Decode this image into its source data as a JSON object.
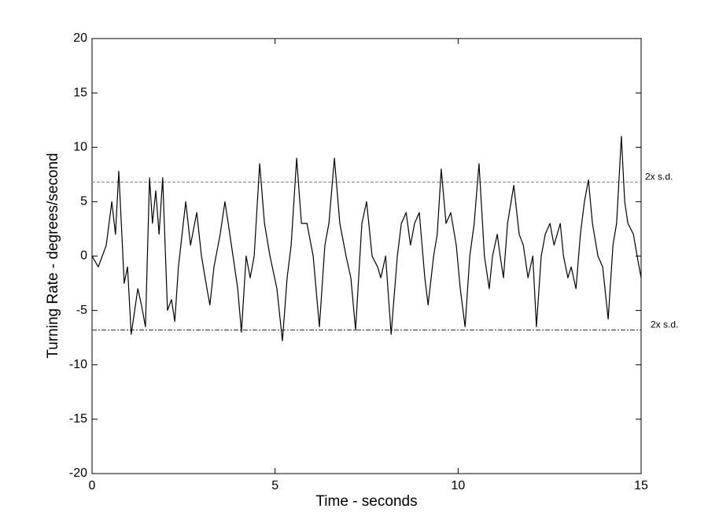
{
  "chart_data": {
    "type": "line",
    "x_label": "Time - seconds",
    "y_label": "Turning Rate - degrees/second",
    "x": [
      0,
      0.17,
      0.39,
      0.54,
      0.64,
      0.73,
      0.88,
      0.97,
      1.07,
      1.25,
      1.35,
      1.46,
      1.57,
      1.65,
      1.74,
      1.83,
      1.93,
      2.06,
      2.17,
      2.26,
      2.36,
      2.56,
      2.69,
      2.86,
      2.99,
      3.14,
      3.22,
      3.33,
      3.5,
      3.63,
      3.72,
      3.85,
      3.98,
      4.08,
      4.21,
      4.32,
      4.43,
      4.58,
      4.71,
      4.86,
      5.05,
      5.2,
      5.33,
      5.44,
      5.59,
      5.72,
      5.87,
      6.04,
      6.21,
      6.36,
      6.47,
      6.62,
      6.77,
      6.94,
      7.07,
      7.2,
      7.37,
      7.5,
      7.65,
      7.8,
      7.89,
      8.02,
      8.17,
      8.34,
      8.45,
      8.58,
      8.7,
      8.81,
      8.94,
      9.09,
      9.18,
      9.33,
      9.43,
      9.54,
      9.67,
      9.8,
      9.95,
      10.06,
      10.19,
      10.32,
      10.44,
      10.57,
      10.72,
      10.85,
      10.94,
      11.07,
      11.15,
      11.24,
      11.35,
      11.52,
      11.67,
      11.78,
      11.91,
      12.04,
      12.14,
      12.27,
      12.38,
      12.51,
      12.62,
      12.79,
      12.88,
      13,
      13.09,
      13.22,
      13.34,
      13.45,
      13.56,
      13.67,
      13.82,
      13.95,
      14.1,
      14.23,
      14.33,
      14.46,
      14.55,
      14.64,
      14.79,
      14.89,
      15
    ],
    "values": [
      0,
      -1,
      1,
      5,
      2,
      7.8,
      -2.5,
      -1,
      -7.2,
      -3,
      -4.5,
      -6.5,
      7.2,
      3,
      6,
      2,
      7.2,
      -5,
      -4,
      -6,
      -1,
      5,
      1,
      4,
      0,
      -3,
      -4.5,
      -1,
      2,
      5,
      3,
      0,
      -3,
      -7,
      0,
      -2,
      0,
      8.5,
      3,
      0,
      -3,
      -7.8,
      -2,
      1,
      9,
      3,
      3,
      0,
      -6.5,
      1,
      3,
      9,
      3,
      0,
      -2,
      -6.8,
      3,
      5,
      0,
      -1,
      -2,
      0,
      -7.2,
      0,
      3,
      4,
      1,
      3,
      4,
      -2,
      -4.5,
      0,
      2,
      8,
      3,
      4,
      1,
      -3,
      -6.5,
      0,
      3,
      8.5,
      0,
      -3,
      0,
      2,
      0,
      -2,
      3,
      6.5,
      2,
      1,
      -2,
      0,
      -6.5,
      0,
      2,
      3,
      1,
      3,
      0,
      -2,
      -1,
      -3,
      2,
      5,
      7,
      3,
      0,
      -1,
      -5.8,
      1,
      3,
      11,
      5,
      3,
      2,
      0,
      -2
    ],
    "color": "#000000",
    "hlines": [
      {
        "value": 6.8,
        "label": "2x s.d.",
        "color": "#888888"
      },
      {
        "value": -6.8,
        "label": "2x s.d.",
        "color": "#333333"
      }
    ],
    "xlim": [
      0,
      15
    ],
    "xticks": [
      0,
      5,
      10,
      15
    ],
    "ylim": [
      -20,
      20
    ],
    "yticks": [
      -20,
      -15,
      -10,
      -5,
      0,
      5,
      10,
      15,
      20
    ],
    "grid": false
  }
}
